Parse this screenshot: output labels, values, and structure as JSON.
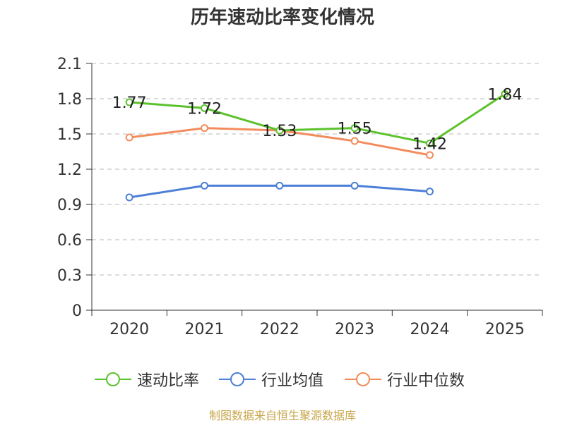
{
  "chart_data": {
    "type": "line",
    "title": "历年速动比率变化情况",
    "categories": [
      "2020",
      "2021",
      "2022",
      "2023",
      "2024",
      "2025"
    ],
    "ylim": [
      0,
      2.1
    ],
    "yticks": [
      "0",
      "0.3",
      "0.6",
      "0.9",
      "1.2",
      "1.5",
      "1.8",
      "2.1"
    ],
    "grid": true,
    "legend_position": "bottom",
    "series": [
      {
        "name": "速动比率",
        "color": "#5cc22c",
        "values": [
          1.77,
          1.72,
          1.53,
          1.55,
          1.42,
          1.84
        ],
        "labels": [
          "1.77",
          "1.72",
          "1.53",
          "1.55",
          "1.42",
          "1.84"
        ]
      },
      {
        "name": "行业均值",
        "color": "#4c7fd6",
        "values": [
          0.96,
          1.06,
          1.06,
          1.06,
          1.01,
          null
        ]
      },
      {
        "name": "行业中位数",
        "color": "#f28c5c",
        "values": [
          1.47,
          1.55,
          1.53,
          1.44,
          1.32,
          null
        ]
      }
    ]
  },
  "source": "制图数据来自恒生聚源数据库"
}
